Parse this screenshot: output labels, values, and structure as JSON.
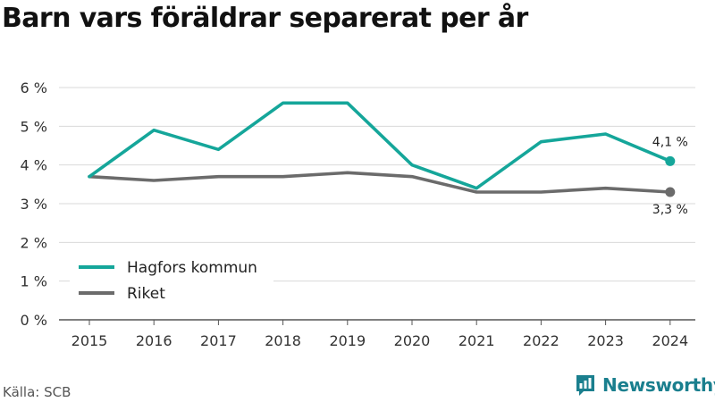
{
  "title": "Barn vars föräldrar separerat per år",
  "source": "Källa: SCB",
  "brand": {
    "name": "Newsworthy",
    "icon": "newsworthy-logo-icon",
    "color": "#1a7f8e"
  },
  "colors": {
    "teal": "#15a69a",
    "gray": "#6b6b6b",
    "grid": "#d9d9d9",
    "axis": "#555555"
  },
  "chart_data": {
    "type": "line",
    "x": [
      2015,
      2016,
      2017,
      2018,
      2019,
      2020,
      2021,
      2022,
      2023,
      2024
    ],
    "series": [
      {
        "name": "Hagfors kommun",
        "color": "#15a69a",
        "values": [
          3.7,
          4.9,
          4.4,
          5.6,
          5.6,
          4.0,
          3.4,
          4.6,
          4.8,
          4.1
        ],
        "end_label": "4,1 %"
      },
      {
        "name": "Riket",
        "color": "#6b6b6b",
        "values": [
          3.7,
          3.6,
          3.7,
          3.7,
          3.8,
          3.7,
          3.3,
          3.3,
          3.4,
          3.3
        ],
        "end_label": "3,3 %"
      }
    ],
    "ylim": [
      0,
      6
    ],
    "yticks": [
      0,
      1,
      2,
      3,
      4,
      5,
      6
    ],
    "ytick_labels": [
      "0 %",
      "1 %",
      "2 %",
      "3 %",
      "4 %",
      "5 %",
      "6 %"
    ],
    "grid": true,
    "legend_position": "bottom-left",
    "xlabel": "",
    "ylabel": ""
  }
}
